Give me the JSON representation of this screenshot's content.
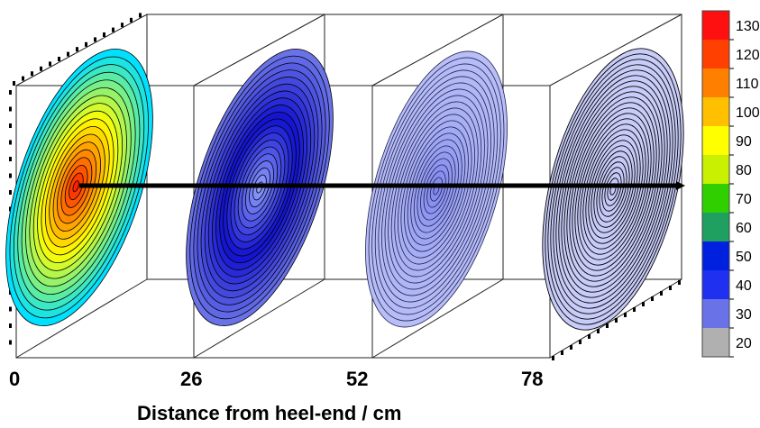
{
  "figure": {
    "axis_title": "Distance from heel-end / cm",
    "positions": [
      "0",
      "26",
      "52",
      "78"
    ]
  },
  "slices": [
    {
      "distance": "0",
      "center_color": "#ff2000",
      "mid_color": "#ffff00",
      "outer_color": "#00e0ff",
      "contours": 18,
      "contour_color": "#000000"
    },
    {
      "distance": "26",
      "center_color": "#90a0ff",
      "mid_color": "#1010d0",
      "outer_color": "#6a72e8",
      "contours": 20,
      "contour_color": "#000000"
    },
    {
      "distance": "52",
      "center_color": "#8088ee",
      "mid_color": "#a8b0f4",
      "outer_color": "#b8bef6",
      "contours": 22,
      "contour_color": "#202050"
    },
    {
      "distance": "78",
      "center_color": "#c4c8f8",
      "mid_color": "#c8ccf8",
      "outer_color": "#c8ccf8",
      "contours": 26,
      "contour_color": "#000000"
    }
  ],
  "colorbar": {
    "labels": [
      "130",
      "120",
      "110",
      "100",
      "90",
      "80",
      "70",
      "60",
      "50",
      "40",
      "30",
      "20"
    ],
    "colors": [
      "#ff1010",
      "#ff4000",
      "#ff8000",
      "#ffc000",
      "#ffff00",
      "#c8f000",
      "#30d000",
      "#20a060",
      "#0020e0",
      "#2030f0",
      "#6a72e8",
      "#b0b0b0"
    ]
  },
  "arrow_color": "#000000"
}
